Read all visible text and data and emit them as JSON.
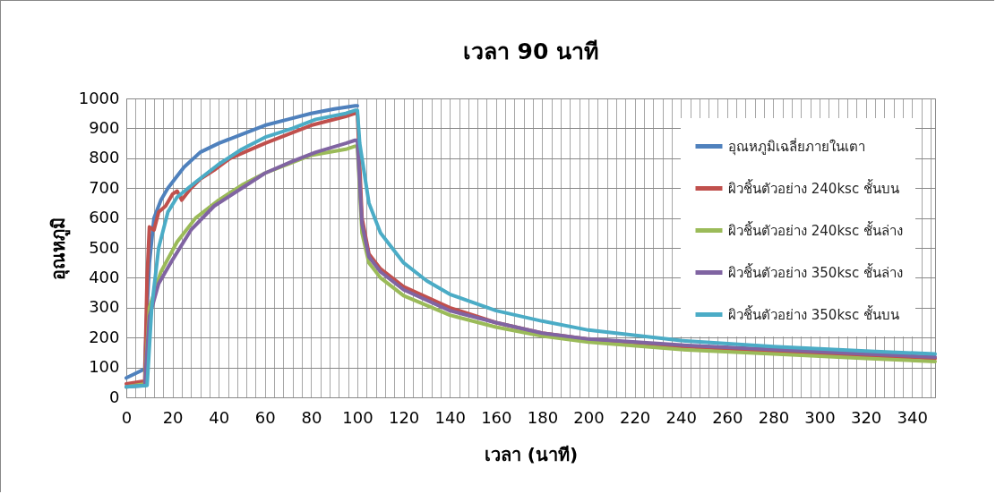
{
  "chart_data": {
    "type": "line",
    "title": "เวลา 90 นาที",
    "xlabel": "เวลา (นาที)",
    "ylabel": "อุณหภูมิ",
    "xlim": [
      0,
      350
    ],
    "ylim": [
      0,
      1000
    ],
    "xticks": [
      0,
      {
        "value": 4,
        "label": null
      },
      {
        "value": 8,
        "label": null
      },
      {
        "value": 12,
        "label": null
      },
      {
        "value": 16,
        "label": null
      },
      20,
      {
        "value": 24,
        "label": null
      },
      {
        "value": 28,
        "label": null
      },
      {
        "value": 32,
        "label": null
      },
      {
        "value": 36,
        "label": null
      },
      40,
      {
        "value": 44,
        "label": null
      },
      {
        "value": 48,
        "label": null
      },
      {
        "value": 52,
        "label": null
      },
      {
        "value": 56,
        "label": null
      },
      60,
      {
        "value": 64,
        "label": null
      },
      {
        "value": 68,
        "label": null
      },
      {
        "value": 72,
        "label": null
      },
      {
        "value": 76,
        "label": null
      },
      80,
      {
        "value": 84,
        "label": null
      },
      {
        "value": 88,
        "label": null
      },
      {
        "value": 92,
        "label": null
      },
      {
        "value": 96,
        "label": null
      },
      100,
      {
        "value": 104,
        "label": null
      },
      {
        "value": 108,
        "label": null
      },
      {
        "value": 112,
        "label": null
      },
      {
        "value": 116,
        "label": null
      },
      120,
      {
        "value": 124,
        "label": null
      },
      {
        "value": 128,
        "label": null
      },
      {
        "value": 132,
        "label": null
      },
      {
        "value": 136,
        "label": null
      },
      140,
      {
        "value": 144,
        "label": null
      },
      {
        "value": 148,
        "label": null
      },
      {
        "value": 152,
        "label": null
      },
      {
        "value": 156,
        "label": null
      },
      160,
      {
        "value": 164,
        "label": null
      },
      {
        "value": 168,
        "label": null
      },
      {
        "value": 172,
        "label": null
      },
      {
        "value": 176,
        "label": null
      },
      180,
      {
        "value": 184,
        "label": null
      },
      {
        "value": 188,
        "label": null
      },
      {
        "value": 192,
        "label": null
      },
      {
        "value": 196,
        "label": null
      },
      200,
      {
        "value": 204,
        "label": null
      },
      {
        "value": 208,
        "label": null
      },
      {
        "value": 212,
        "label": null
      },
      {
        "value": 216,
        "label": null
      },
      220,
      {
        "value": 224,
        "label": null
      },
      {
        "value": 228,
        "label": null
      },
      {
        "value": 232,
        "label": null
      },
      {
        "value": 236,
        "label": null
      },
      240,
      {
        "value": 244,
        "label": null
      },
      {
        "value": 248,
        "label": null
      },
      {
        "value": 252,
        "label": null
      },
      {
        "value": 256,
        "label": null
      },
      260,
      {
        "value": 264,
        "label": null
      },
      {
        "value": 268,
        "label": null
      },
      {
        "value": 272,
        "label": null
      },
      {
        "value": 276,
        "label": null
      },
      280,
      {
        "value": 284,
        "label": null
      },
      {
        "value": 288,
        "label": null
      },
      {
        "value": 292,
        "label": null
      },
      {
        "value": 296,
        "label": null
      },
      300,
      {
        "value": 304,
        "label": null
      },
      {
        "value": 308,
        "label": null
      },
      {
        "value": 312,
        "label": null
      },
      {
        "value": 316,
        "label": null
      },
      320,
      {
        "value": 324,
        "label": null
      },
      {
        "value": 328,
        "label": null
      },
      {
        "value": 332,
        "label": null
      },
      {
        "value": 336,
        "label": null
      },
      340,
      {
        "value": 344,
        "label": null
      },
      {
        "value": 348,
        "label": null
      }
    ],
    "yticks": [
      0,
      100,
      200,
      300,
      400,
      500,
      600,
      700,
      800,
      900,
      1000
    ],
    "grid": true,
    "legend": "top right",
    "line_style": "solid",
    "marker": "none",
    "series": [
      {
        "name": "อุณหภูมิเฉลี่ยภายในเตา",
        "color": "#4f81bd",
        "x": [
          0,
          4,
          8,
          9,
          10,
          12,
          15,
          18,
          22,
          25,
          32,
          40,
          50,
          60,
          70,
          80,
          90,
          99,
          100
        ],
        "values": [
          65,
          80,
          95,
          300,
          450,
          600,
          660,
          700,
          740,
          770,
          820,
          850,
          880,
          910,
          930,
          950,
          965,
          975,
          975
        ]
      },
      {
        "name": "ผิวชิ้นตัวอย่าง 240ksc ชั้นบน",
        "color": "#c0504d",
        "x": [
          0,
          8,
          9,
          10,
          12,
          14,
          17,
          20,
          22,
          24,
          26,
          28,
          32,
          38,
          45,
          60,
          70,
          80,
          95,
          99,
          100,
          102,
          105,
          110,
          120,
          140,
          160,
          180,
          200,
          240,
          280,
          320,
          350
        ],
        "values": [
          45,
          55,
          400,
          570,
          560,
          620,
          640,
          680,
          690,
          660,
          680,
          700,
          730,
          760,
          800,
          850,
          880,
          910,
          940,
          950,
          950,
          600,
          480,
          430,
          370,
          300,
          250,
          215,
          195,
          170,
          155,
          140,
          130
        ]
      },
      {
        "name": "ผิวชิ้นตัวอย่าง 240ksc ชั้นล่าง",
        "color": "#9bbb59",
        "x": [
          0,
          8,
          10,
          15,
          22,
          30,
          40,
          50,
          60,
          70,
          80,
          95,
          99,
          100,
          102,
          105,
          110,
          120,
          140,
          160,
          180,
          200,
          240,
          280,
          320,
          350
        ],
        "values": [
          35,
          45,
          300,
          420,
          520,
          600,
          660,
          710,
          750,
          780,
          810,
          830,
          840,
          840,
          550,
          450,
          400,
          340,
          275,
          235,
          205,
          185,
          160,
          145,
          130,
          120
        ]
      },
      {
        "name": "ผิวชิ้นตัวอย่าง 350ksc ชั้นล่าง",
        "color": "#8064a2",
        "x": [
          0,
          8,
          10,
          14,
          20,
          28,
          38,
          50,
          60,
          72,
          82,
          95,
          99,
          100,
          102,
          105,
          110,
          120,
          140,
          160,
          180,
          200,
          240,
          280,
          320,
          350
        ],
        "values": [
          35,
          40,
          270,
          380,
          460,
          560,
          640,
          700,
          750,
          790,
          820,
          850,
          860,
          860,
          580,
          470,
          420,
          360,
          290,
          250,
          215,
          195,
          175,
          160,
          145,
          135
        ]
      },
      {
        "name": "ผิวชิ้นตัวอย่าง 350ksc ชั้นบน",
        "color": "#4bacc6",
        "x": [
          0,
          9,
          11,
          14,
          18,
          22,
          30,
          40,
          50,
          60,
          72,
          82,
          95,
          99,
          100,
          101,
          105,
          110,
          120,
          130,
          140,
          160,
          180,
          200,
          240,
          280,
          320,
          350
        ],
        "values": [
          35,
          40,
          300,
          500,
          620,
          670,
          720,
          780,
          830,
          870,
          900,
          930,
          950,
          960,
          960,
          850,
          650,
          550,
          450,
          390,
          345,
          290,
          255,
          225,
          190,
          170,
          155,
          145
        ]
      }
    ]
  }
}
